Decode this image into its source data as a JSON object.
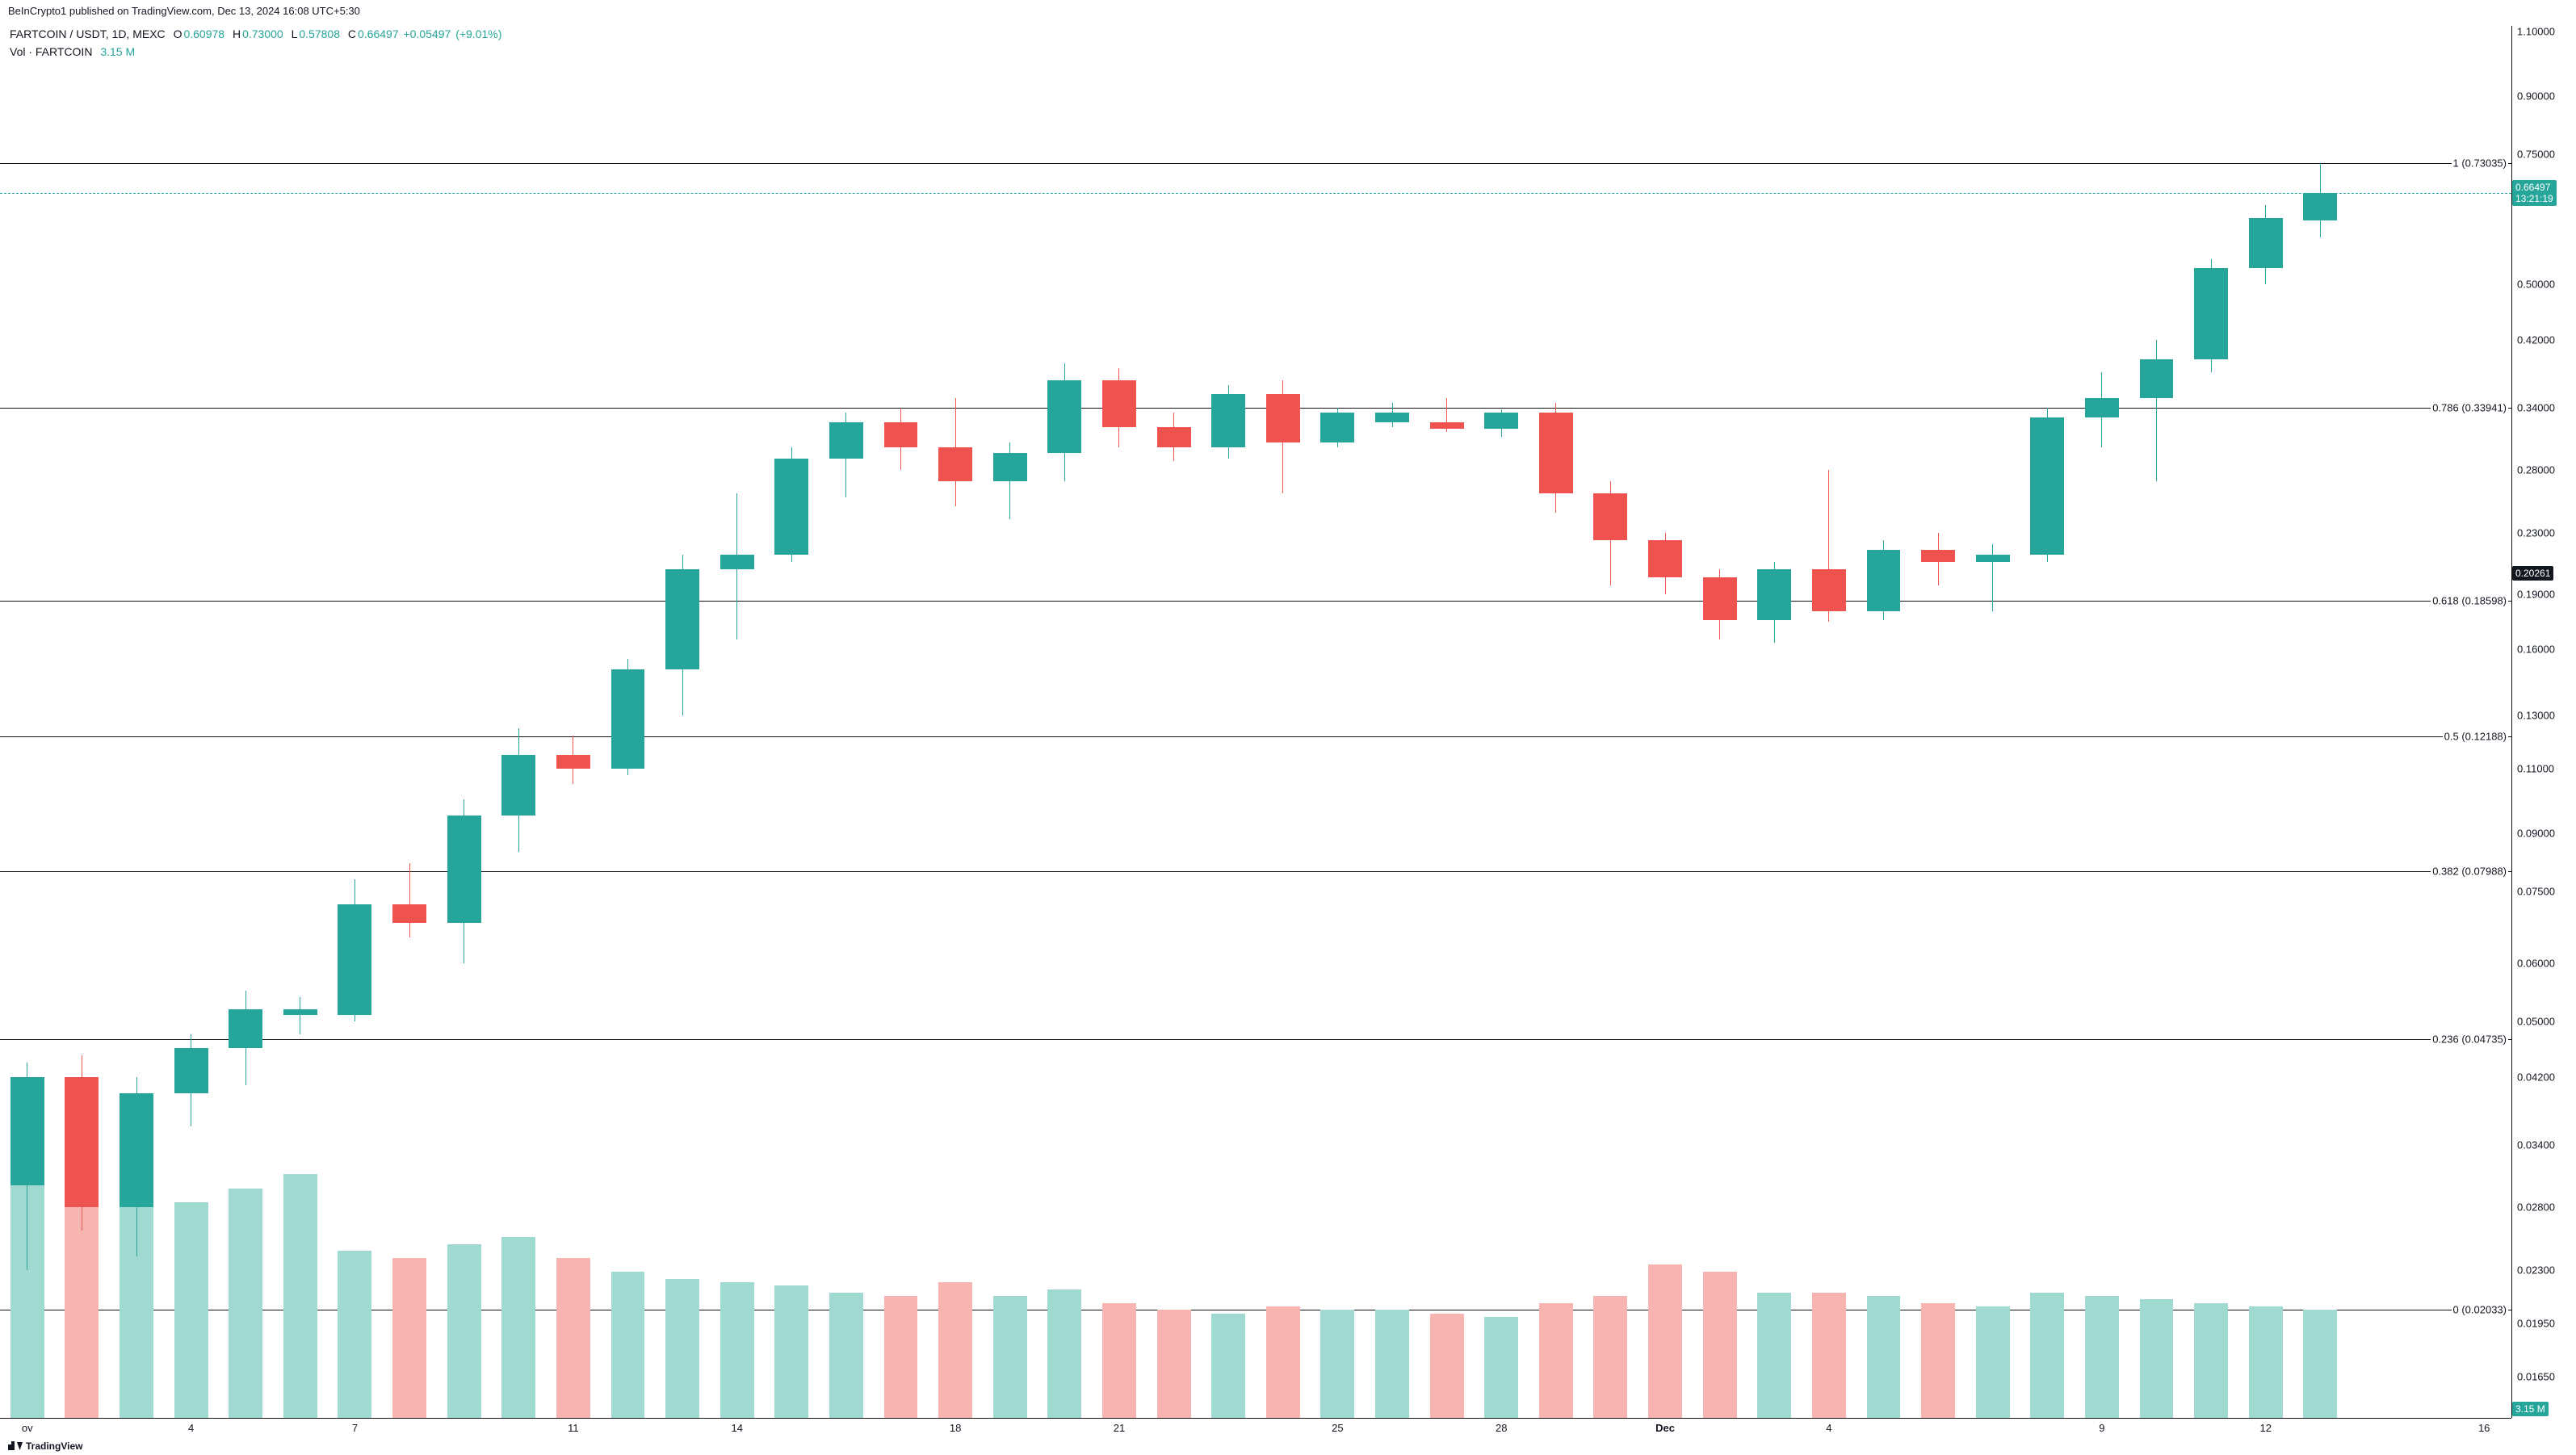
{
  "header": {
    "publish": "BeInCrypto1 published on TradingView.com, Dec 13, 2024 16:08 UTC+5:30"
  },
  "legend": {
    "symbol": "FARTCOIN / USDT, 1D, MEXC",
    "o": "0.60978",
    "h": "0.73000",
    "l": "0.57808",
    "c": "0.66497",
    "chg": "+0.05497",
    "pct": "(+9.01%)",
    "vol_label": "Vol · FARTCOIN",
    "vol_value": "3.15 M",
    "up_color": "#26a69a",
    "down_color": "#ef5350"
  },
  "footer": {
    "brand": "TradingView"
  },
  "chart": {
    "background_color": "#ffffff",
    "up_color": "#26a69a",
    "down_color": "#ef5350",
    "vol_up_color": "#a0d8d2",
    "vol_down_color": "#f7b5b2",
    "candle_width_ratio": 0.62,
    "price_scale": "log",
    "ylim": [
      0.0145,
      1.12
    ],
    "ytick_values": [
      1.1,
      0.9,
      0.75,
      0.66497,
      0.5,
      0.42,
      0.34,
      0.28,
      0.23,
      0.20261,
      0.19,
      0.16,
      0.13,
      0.11,
      0.09,
      0.075,
      0.06,
      0.05,
      0.042,
      0.034,
      0.028,
      0.023,
      0.0195,
      0.0165
    ],
    "ytick_labels": [
      "1.10000",
      "0.90000",
      "0.75000",
      "0.66497",
      "0.50000",
      "0.42000",
      "0.34000",
      "0.28000",
      "0.23000",
      "0.20261",
      "0.19000",
      "0.16000",
      "0.13000",
      "0.11000",
      "0.09000",
      "0.07500",
      "0.06000",
      "0.05000",
      "0.04200",
      "0.03400",
      "0.02800",
      "0.02300",
      "0.01950",
      "0.01650"
    ],
    "x_start": 0,
    "x_end": 45,
    "xticks": [
      {
        "i": 0,
        "label": "ov"
      },
      {
        "i": 3,
        "label": "4"
      },
      {
        "i": 6,
        "label": "7"
      },
      {
        "i": 10,
        "label": "11"
      },
      {
        "i": 13,
        "label": "14"
      },
      {
        "i": 17,
        "label": "18"
      },
      {
        "i": 20,
        "label": "21"
      },
      {
        "i": 24,
        "label": "25"
      },
      {
        "i": 27,
        "label": "28"
      },
      {
        "i": 30,
        "label": "Dec",
        "bold": true
      },
      {
        "i": 33,
        "label": "4"
      },
      {
        "i": 38,
        "label": "9"
      },
      {
        "i": 41,
        "label": "12"
      },
      {
        "i": 45,
        "label": "16"
      }
    ],
    "fib_levels": [
      {
        "ratio": "1",
        "price": 0.73035,
        "label": "1 (0.73035)"
      },
      {
        "ratio": "0.786",
        "price": 0.33941,
        "label": "0.786 (0.33941)"
      },
      {
        "ratio": "0.618",
        "price": 0.18598,
        "label": "0.618 (0.18598)"
      },
      {
        "ratio": "0.5",
        "price": 0.12188,
        "label": "0.5 (0.12188)"
      },
      {
        "ratio": "0.382",
        "price": 0.07988,
        "label": "0.382 (0.07988)"
      },
      {
        "ratio": "0.236",
        "price": 0.04735,
        "label": "0.236 (0.04735)"
      },
      {
        "ratio": "0",
        "price": 0.02033,
        "label": "0 (0.02033)"
      }
    ],
    "fib_line_color": "#111111",
    "close_line": {
      "price": 0.66497,
      "color": "#26a69a",
      "label": "0.66497",
      "countdown": "13:21:19"
    },
    "dark_badge": {
      "price": 0.20261,
      "label": "0.20261"
    },
    "vol_badge": {
      "value": "3.15 M",
      "color": "#26a69a"
    },
    "vol_max": 0.044,
    "vol_height_ratio": 0.22,
    "candles": [
      {
        "o": 0.03,
        "h": 0.044,
        "l": 0.023,
        "c": 0.042,
        "v": 0.044,
        "up": true
      },
      {
        "o": 0.042,
        "h": 0.045,
        "l": 0.026,
        "c": 0.028,
        "v": 0.042,
        "up": false
      },
      {
        "o": 0.028,
        "h": 0.042,
        "l": 0.024,
        "c": 0.04,
        "v": 0.042,
        "up": true
      },
      {
        "o": 0.04,
        "h": 0.048,
        "l": 0.036,
        "c": 0.046,
        "v": 0.031,
        "up": true
      },
      {
        "o": 0.046,
        "h": 0.055,
        "l": 0.041,
        "c": 0.052,
        "v": 0.033,
        "up": true
      },
      {
        "o": 0.052,
        "h": 0.054,
        "l": 0.048,
        "c": 0.051,
        "v": 0.035,
        "up": true
      },
      {
        "o": 0.051,
        "h": 0.078,
        "l": 0.05,
        "c": 0.072,
        "v": 0.024,
        "up": true
      },
      {
        "o": 0.072,
        "h": 0.082,
        "l": 0.065,
        "c": 0.068,
        "v": 0.023,
        "up": false
      },
      {
        "o": 0.068,
        "h": 0.1,
        "l": 0.06,
        "c": 0.095,
        "v": 0.025,
        "up": true
      },
      {
        "o": 0.095,
        "h": 0.125,
        "l": 0.085,
        "c": 0.115,
        "v": 0.026,
        "up": true
      },
      {
        "o": 0.115,
        "h": 0.122,
        "l": 0.105,
        "c": 0.11,
        "v": 0.023,
        "up": false
      },
      {
        "o": 0.11,
        "h": 0.155,
        "l": 0.108,
        "c": 0.15,
        "v": 0.021,
        "up": true
      },
      {
        "o": 0.15,
        "h": 0.215,
        "l": 0.13,
        "c": 0.205,
        "v": 0.02,
        "up": true
      },
      {
        "o": 0.205,
        "h": 0.26,
        "l": 0.165,
        "c": 0.215,
        "v": 0.0195,
        "up": true
      },
      {
        "o": 0.215,
        "h": 0.3,
        "l": 0.21,
        "c": 0.29,
        "v": 0.019,
        "up": true
      },
      {
        "o": 0.29,
        "h": 0.335,
        "l": 0.257,
        "c": 0.325,
        "v": 0.018,
        "up": true
      },
      {
        "o": 0.325,
        "h": 0.34,
        "l": 0.28,
        "c": 0.3,
        "v": 0.0175,
        "up": false
      },
      {
        "o": 0.3,
        "h": 0.35,
        "l": 0.25,
        "c": 0.27,
        "v": 0.0195,
        "up": false
      },
      {
        "o": 0.27,
        "h": 0.305,
        "l": 0.24,
        "c": 0.295,
        "v": 0.0175,
        "up": true
      },
      {
        "o": 0.295,
        "h": 0.39,
        "l": 0.27,
        "c": 0.37,
        "v": 0.0185,
        "up": true
      },
      {
        "o": 0.37,
        "h": 0.385,
        "l": 0.3,
        "c": 0.32,
        "v": 0.0165,
        "up": false
      },
      {
        "o": 0.32,
        "h": 0.335,
        "l": 0.288,
        "c": 0.3,
        "v": 0.0155,
        "up": false
      },
      {
        "o": 0.3,
        "h": 0.365,
        "l": 0.29,
        "c": 0.355,
        "v": 0.015,
        "up": true
      },
      {
        "o": 0.355,
        "h": 0.37,
        "l": 0.26,
        "c": 0.305,
        "v": 0.016,
        "up": false
      },
      {
        "o": 0.305,
        "h": 0.34,
        "l": 0.3,
        "c": 0.335,
        "v": 0.0155,
        "up": true
      },
      {
        "o": 0.335,
        "h": 0.345,
        "l": 0.32,
        "c": 0.325,
        "v": 0.0155,
        "up": true
      },
      {
        "o": 0.325,
        "h": 0.35,
        "l": 0.315,
        "c": 0.318,
        "v": 0.015,
        "up": false
      },
      {
        "o": 0.318,
        "h": 0.338,
        "l": 0.31,
        "c": 0.335,
        "v": 0.0145,
        "up": true
      },
      {
        "o": 0.335,
        "h": 0.345,
        "l": 0.245,
        "c": 0.26,
        "v": 0.0165,
        "up": false
      },
      {
        "o": 0.26,
        "h": 0.27,
        "l": 0.195,
        "c": 0.225,
        "v": 0.0175,
        "up": false
      },
      {
        "o": 0.225,
        "h": 0.23,
        "l": 0.19,
        "c": 0.2,
        "v": 0.022,
        "up": false
      },
      {
        "o": 0.2,
        "h": 0.205,
        "l": 0.165,
        "c": 0.175,
        "v": 0.021,
        "up": false
      },
      {
        "o": 0.175,
        "h": 0.21,
        "l": 0.163,
        "c": 0.205,
        "v": 0.018,
        "up": true
      },
      {
        "o": 0.205,
        "h": 0.28,
        "l": 0.174,
        "c": 0.18,
        "v": 0.018,
        "up": false
      },
      {
        "o": 0.18,
        "h": 0.225,
        "l": 0.175,
        "c": 0.218,
        "v": 0.0175,
        "up": true
      },
      {
        "o": 0.218,
        "h": 0.23,
        "l": 0.195,
        "c": 0.21,
        "v": 0.0165,
        "up": false
      },
      {
        "o": 0.21,
        "h": 0.222,
        "l": 0.18,
        "c": 0.215,
        "v": 0.016,
        "up": true
      },
      {
        "o": 0.215,
        "h": 0.34,
        "l": 0.21,
        "c": 0.33,
        "v": 0.018,
        "up": true
      },
      {
        "o": 0.33,
        "h": 0.38,
        "l": 0.3,
        "c": 0.35,
        "v": 0.0175,
        "up": true
      },
      {
        "o": 0.35,
        "h": 0.42,
        "l": 0.27,
        "c": 0.395,
        "v": 0.017,
        "up": true
      },
      {
        "o": 0.395,
        "h": 0.54,
        "l": 0.38,
        "c": 0.525,
        "v": 0.0165,
        "up": true
      },
      {
        "o": 0.525,
        "h": 0.64,
        "l": 0.5,
        "c": 0.615,
        "v": 0.016,
        "up": true
      },
      {
        "o": 0.60978,
        "h": 0.73,
        "l": 0.57808,
        "c": 0.66497,
        "v": 0.0155,
        "up": true
      }
    ]
  }
}
